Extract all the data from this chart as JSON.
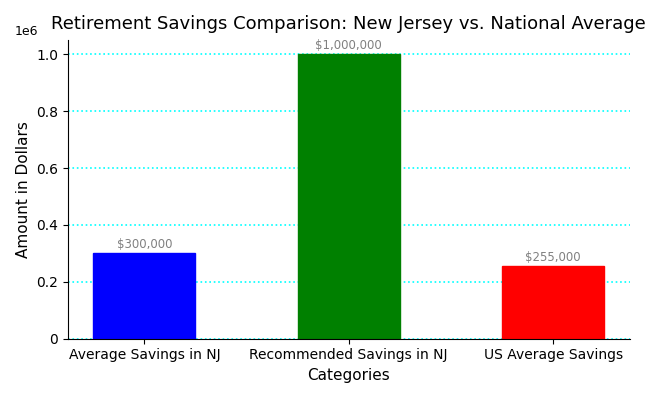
{
  "title": "Retirement Savings Comparison: New Jersey vs. National Average",
  "xlabel": "Categories",
  "ylabel": "Amount in Dollars",
  "categories": [
    "Average Savings in NJ",
    "Recommended Savings in NJ",
    "US Average Savings"
  ],
  "values": [
    300000,
    1000000,
    255000
  ],
  "bar_colors": [
    "blue",
    "green",
    "red"
  ],
  "labels": [
    "$300,000",
    "$1,000,000",
    "$255,000"
  ],
  "ylim": [
    0,
    1050000
  ],
  "background_color": "#ffffff",
  "grid_color": "#00ffff",
  "title_fontsize": 13,
  "label_fontsize": 11,
  "tick_fontsize": 10
}
